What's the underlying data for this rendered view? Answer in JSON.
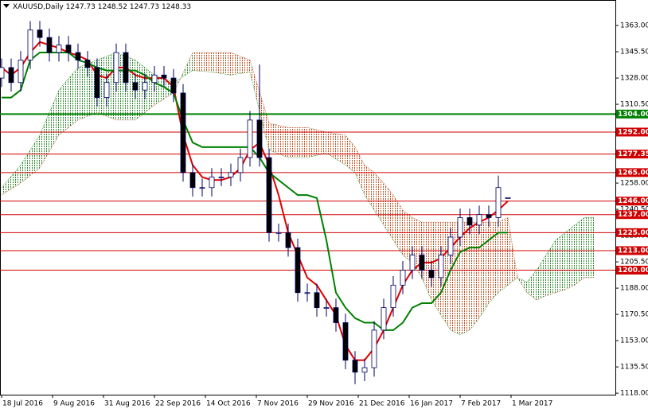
{
  "chart_data": {
    "type": "candlestick",
    "symbol": "XAUUSD,Daily",
    "x": [
      0,
      3,
      6,
      9,
      12,
      15,
      18,
      21,
      24,
      27,
      30,
      33,
      36,
      39,
      42,
      45,
      48,
      51,
      54,
      57,
      60,
      63,
      66,
      69,
      72,
      75,
      78,
      81,
      84,
      87,
      90,
      93,
      96,
      99,
      102,
      105,
      108,
      111,
      114,
      117,
      120,
      123,
      126,
      129,
      132,
      135,
      138,
      141,
      144,
      147,
      150,
      153,
      156,
      159
    ],
    "open": [
      1328,
      1335,
      1325,
      1340,
      1360,
      1355,
      1345,
      1350,
      1345,
      1340,
      1335,
      1315,
      1325,
      1345,
      1325,
      1320,
      1325,
      1330,
      1328,
      1318,
      1265,
      1255,
      1255,
      1262,
      1262,
      1265,
      1275,
      1300,
      1275,
      1225,
      1225,
      1215,
      1185,
      1185,
      1175,
      1175,
      1165,
      1140,
      1132,
      1135,
      1160,
      1175,
      1190,
      1200,
      1210,
      1200,
      1195,
      1210,
      1222,
      1235,
      1230,
      1237,
      1235,
      1247.73
    ],
    "high": [
      1341,
      1341,
      1346,
      1366,
      1366,
      1361,
      1356,
      1356,
      1351,
      1346,
      1341,
      1331,
      1351,
      1351,
      1331,
      1331,
      1336,
      1336,
      1334,
      1324,
      1271,
      1261,
      1268,
      1268,
      1271,
      1281,
      1306,
      1337,
      1281,
      1231,
      1231,
      1221,
      1191,
      1191,
      1181,
      1181,
      1171,
      1146,
      1141,
      1166,
      1181,
      1196,
      1206,
      1216,
      1216,
      1206,
      1216,
      1228,
      1241,
      1241,
      1243,
      1243,
      1263,
      1248.52
    ],
    "low": [
      1322,
      1319,
      1319,
      1334,
      1349,
      1339,
      1339,
      1339,
      1334,
      1329,
      1309,
      1309,
      1319,
      1319,
      1314,
      1314,
      1319,
      1322,
      1312,
      1259,
      1249,
      1249,
      1249,
      1256,
      1256,
      1259,
      1269,
      1269,
      1219,
      1219,
      1209,
      1179,
      1179,
      1169,
      1169,
      1159,
      1134,
      1124,
      1126,
      1129,
      1154,
      1169,
      1184,
      1194,
      1194,
      1189,
      1189,
      1204,
      1216,
      1224,
      1224,
      1229,
      1229,
      1247.73
    ],
    "close": [
      1335,
      1325,
      1340,
      1360,
      1355,
      1345,
      1350,
      1345,
      1340,
      1335,
      1315,
      1325,
      1345,
      1325,
      1320,
      1325,
      1330,
      1328,
      1318,
      1265,
      1255,
      1255,
      1262,
      1262,
      1265,
      1275,
      1300,
      1275,
      1225,
      1225,
      1215,
      1185,
      1185,
      1175,
      1175,
      1165,
      1140,
      1132,
      1135,
      1160,
      1175,
      1190,
      1200,
      1210,
      1200,
      1195,
      1210,
      1222,
      1235,
      1230,
      1237,
      1235,
      1255,
      1248.33
    ],
    "series": [
      {
        "color": "#e00000",
        "values": [
          1335,
          1330,
          1335,
          1345,
          1352,
          1350,
          1348,
          1345,
          1343,
          1340,
          1330,
          1328,
          1335,
          1335,
          1330,
          1328,
          1328,
          1328,
          1322,
          1290,
          1270,
          1262,
          1260,
          1260,
          1262,
          1268,
          1280,
          1285,
          1270,
          1250,
          1225,
          1210,
          1195,
          1190,
          1180,
          1170,
          1150,
          1140,
          1140,
          1148,
          1160,
          1175,
          1190,
          1200,
          1205,
          1205,
          1208,
          1215,
          1222,
          1228,
          1232,
          1235,
          1240,
          1246
        ]
      },
      {
        "color": "#008000",
        "values": [
          1315,
          1315,
          1320,
          1340,
          1345,
          1345,
          1345,
          1345,
          1340,
          1338,
          1335,
          1333,
          1333,
          1333,
          1333,
          1330,
          1325,
          1322,
          1318,
          1300,
          1285,
          1282,
          1282,
          1282,
          1282,
          1282,
          1282,
          1275,
          1265,
          1260,
          1255,
          1250,
          1250,
          1248,
          1220,
          1185,
          1175,
          1168,
          1165,
          1165,
          1160,
          1160,
          1165,
          1175,
          1178,
          1178,
          1185,
          1200,
          1212,
          1215,
          1215,
          1220,
          1225,
          1225
        ]
      }
    ],
    "cloud": {
      "x": [
        0,
        6,
        12,
        18,
        24,
        30,
        36,
        42,
        48,
        54,
        60,
        66,
        72,
        78,
        84,
        90,
        96,
        102,
        108,
        111,
        114,
        117,
        120,
        123,
        126,
        129,
        132,
        135,
        138,
        141,
        144,
        147,
        150,
        153,
        156,
        159,
        162,
        165,
        168,
        171,
        174,
        177,
        180,
        183,
        186
      ],
      "span_a": [
        1255,
        1270,
        1290,
        1320,
        1335,
        1340,
        1345,
        1340,
        1330,
        1325,
        1333,
        1332,
        1330,
        1332,
        1280,
        1275,
        1275,
        1278,
        1270,
        1265,
        1250,
        1240,
        1230,
        1220,
        1210,
        1205,
        1195,
        1180,
        1170,
        1160,
        1157,
        1160,
        1168,
        1178,
        1185,
        1190,
        1195,
        1192,
        1200,
        1210,
        1220,
        1225,
        1230,
        1235,
        1235
      ],
      "span_b": [
        1250,
        1258,
        1268,
        1290,
        1300,
        1305,
        1300,
        1300,
        1310,
        1318,
        1345,
        1345,
        1345,
        1340,
        1298,
        1295,
        1295,
        1292,
        1290,
        1282,
        1270,
        1265,
        1258,
        1250,
        1240,
        1235,
        1232,
        1232,
        1232,
        1232,
        1232,
        1232,
        1232,
        1232,
        1232,
        1235,
        1195,
        1185,
        1180,
        1183,
        1185,
        1187,
        1190,
        1195,
        1195
      ],
      "up_color": "#008000",
      "down_color": "#b03a10"
    },
    "levels": [
      {
        "value": 1304,
        "label": "1304.00",
        "color": "#008000"
      },
      {
        "value": 1292,
        "label": "1292.00",
        "color": "#d00000"
      },
      {
        "value": 1277.35,
        "label": "1277.35",
        "color": "#d00000"
      },
      {
        "value": 1265,
        "label": "1265.00",
        "color": "#d00000"
      },
      {
        "value": 1246,
        "label": "1246.00",
        "color": "#d00000"
      },
      {
        "value": 1237,
        "label": "1237.00",
        "color": "#d00000"
      },
      {
        "value": 1225,
        "label": "1225.00",
        "color": "#d00000"
      },
      {
        "value": 1213,
        "label": "1213.00",
        "color": "#d00000"
      },
      {
        "value": 1200,
        "label": "1200.00",
        "color": "#d00000"
      }
    ],
    "xlim": [
      -0.5,
      192.75
    ],
    "ylim": [
      1117,
      1380
    ],
    "xticks": [
      {
        "value": 0,
        "label": "18 Jul 2016"
      },
      {
        "value": 16,
        "label": "9 Aug 2016"
      },
      {
        "value": 32,
        "label": "31 Aug 2016"
      },
      {
        "value": 48,
        "label": "22 Sep 2016"
      },
      {
        "value": 64,
        "label": "14 Oct 2016"
      },
      {
        "value": 80,
        "label": "7 Nov 2016"
      },
      {
        "value": 96,
        "label": "29 Nov 2016"
      },
      {
        "value": 112,
        "label": "21 Dec 2016"
      },
      {
        "value": 128,
        "label": "16 Jan 2017"
      },
      {
        "value": 144,
        "label": "7 Feb 2017"
      },
      {
        "value": 160,
        "label": "1 Mar 2017"
      }
    ],
    "yticks": [
      {
        "value": 1363,
        "label": "1363.00"
      },
      {
        "value": 1345.5,
        "label": "1345.50"
      },
      {
        "value": 1328,
        "label": "1328.00"
      },
      {
        "value": 1310.5,
        "label": "1310.50"
      },
      {
        "value": 1258,
        "label": "1258.00"
      },
      {
        "value": 1240.5,
        "label": "1240.50"
      },
      {
        "value": 1223,
        "label": "1223.00"
      },
      {
        "value": 1205.5,
        "label": "1205.50"
      },
      {
        "value": 1188,
        "label": "1188.00"
      },
      {
        "value": 1170.5,
        "label": "1170.50"
      },
      {
        "value": 1153,
        "label": "1153.00"
      },
      {
        "value": 1135.5,
        "label": "1135.50"
      },
      {
        "value": 1118,
        "label": "1118.00"
      }
    ]
  }
}
